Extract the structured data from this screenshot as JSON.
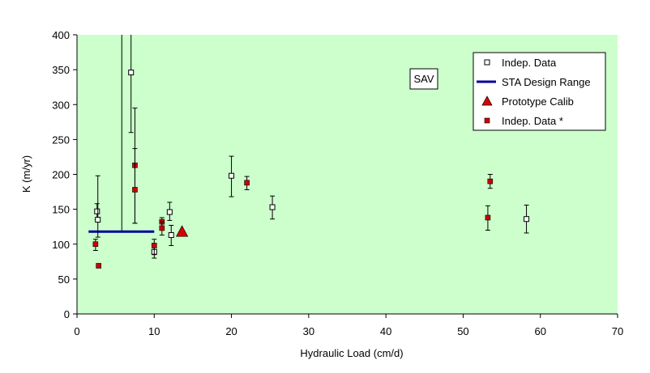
{
  "chart_data": {
    "type": "scatter",
    "title": "",
    "xlabel": "Hydraulic Load (cm/d)",
    "ylabel": "K (m/yr)",
    "xlim": [
      0,
      70
    ],
    "ylim": [
      0,
      400
    ],
    "x_ticks": [
      0,
      10,
      20,
      30,
      40,
      50,
      60,
      70
    ],
    "y_ticks": [
      0,
      50,
      100,
      150,
      200,
      250,
      300,
      350,
      400
    ],
    "grid": false,
    "background": "#ccffcc",
    "annotation": "SAV",
    "legend_position": "top-right",
    "series": [
      {
        "name": "Indep. Data",
        "marker": "open-square",
        "color": "#000000",
        "points": [
          {
            "x": 2.6,
            "y": 147,
            "lo": 135,
            "hi": 158
          },
          {
            "x": 2.7,
            "y": 135,
            "lo": 110,
            "hi": 198
          },
          {
            "x": 7.0,
            "y": 346,
            "lo": 260,
            "hi": 410
          },
          {
            "x": 10.0,
            "y": 89,
            "lo": 80,
            "hi": 99
          },
          {
            "x": 12.0,
            "y": 146,
            "lo": 134,
            "hi": 160
          },
          {
            "x": 12.2,
            "y": 113,
            "lo": 98,
            "hi": 127
          },
          {
            "x": 20.0,
            "y": 198,
            "lo": 168,
            "hi": 226
          },
          {
            "x": 25.3,
            "y": 153,
            "lo": 136,
            "hi": 169
          },
          {
            "x": 58.2,
            "y": 136,
            "lo": 116,
            "hi": 156
          }
        ]
      },
      {
        "name": "STA Design Range",
        "marker": "line",
        "color": "#000099",
        "x_range": [
          1.5,
          10.0
        ],
        "y": 118
      },
      {
        "name": "Prototype Calib",
        "marker": "triangle",
        "color": "#dd0000",
        "points": [
          {
            "x": 13.6,
            "y": 117
          }
        ]
      },
      {
        "name": "Indep. Data *",
        "marker": "filled-square",
        "color": "#cc0000",
        "points": [
          {
            "x": 2.4,
            "y": 100,
            "lo": 91,
            "hi": 107
          },
          {
            "x": 2.8,
            "y": 69,
            "lo": 67,
            "hi": 72
          },
          {
            "x": 7.5,
            "y": 213,
            "lo": 130,
            "hi": 295
          },
          {
            "x": 7.5,
            "y": 178,
            "lo": 130,
            "hi": 237
          },
          {
            "x": 10.0,
            "y": 98,
            "lo": 85,
            "hi": 107
          },
          {
            "x": 11.0,
            "y": 132,
            "lo": 125,
            "hi": 138
          },
          {
            "x": 11.0,
            "y": 123,
            "lo": 113,
            "hi": 132
          },
          {
            "x": 22.0,
            "y": 188,
            "lo": 178,
            "hi": 197
          },
          {
            "x": 53.2,
            "y": 138,
            "lo": 120,
            "hi": 155
          },
          {
            "x": 53.5,
            "y": 190,
            "lo": 180,
            "hi": 200
          }
        ]
      }
    ],
    "extra_lines": [
      {
        "x": 5.8,
        "lo": 118,
        "hi": 410
      }
    ]
  }
}
